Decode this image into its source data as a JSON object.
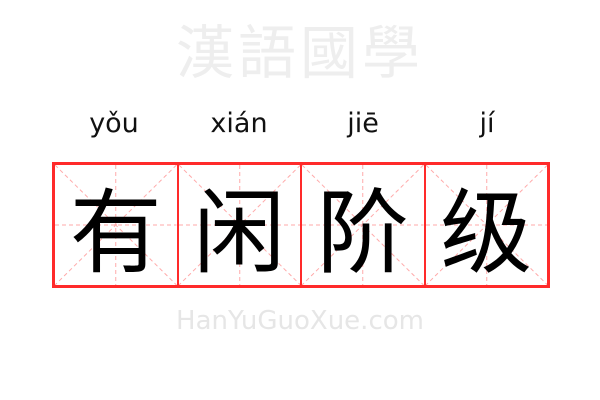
{
  "characters": [
    {
      "pinyin": "yǒu",
      "hanzi": "有"
    },
    {
      "pinyin": "xián",
      "hanzi": "闲"
    },
    {
      "pinyin": "jiē",
      "hanzi": "阶"
    },
    {
      "pinyin": "jí",
      "hanzi": "级"
    }
  ],
  "watermark": {
    "hanzi": "漢語國學",
    "latin": "HanYuGuoXue.com"
  },
  "colors": {
    "border": "#ff2a2a",
    "guide": "#ffaaaa"
  }
}
